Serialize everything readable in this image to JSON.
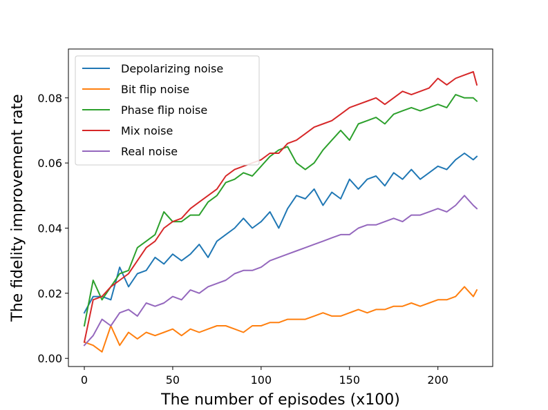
{
  "chart_data": {
    "type": "line",
    "title": "",
    "xlabel": "The number of episodes (x100)",
    "ylabel": "The fidelity improvement rate",
    "xlim": [
      -9,
      231
    ],
    "ylim": [
      -0.0025,
      0.095
    ],
    "xticks": [
      0,
      50,
      100,
      150,
      200
    ],
    "xtick_labels": [
      "0",
      "50",
      "100",
      "150",
      "200"
    ],
    "yticks": [
      0.0,
      0.02,
      0.04,
      0.06,
      0.08
    ],
    "ytick_labels": [
      "0.00",
      "0.02",
      "0.04",
      "0.06",
      "0.08"
    ],
    "grid": false,
    "legend_position": "upper-left",
    "series": [
      {
        "name": "Depolarizing noise",
        "color": "#1f77b4",
        "x": [
          0,
          5,
          10,
          15,
          20,
          25,
          30,
          35,
          40,
          45,
          50,
          55,
          60,
          65,
          70,
          75,
          80,
          85,
          90,
          95,
          100,
          105,
          110,
          115,
          120,
          125,
          130,
          135,
          140,
          145,
          150,
          155,
          160,
          165,
          170,
          175,
          180,
          185,
          190,
          195,
          200,
          205,
          210,
          215,
          220,
          222
        ],
        "values": [
          0.014,
          0.019,
          0.019,
          0.018,
          0.028,
          0.022,
          0.026,
          0.027,
          0.031,
          0.029,
          0.032,
          0.03,
          0.032,
          0.035,
          0.031,
          0.036,
          0.038,
          0.04,
          0.043,
          0.04,
          0.042,
          0.045,
          0.04,
          0.046,
          0.05,
          0.049,
          0.052,
          0.047,
          0.051,
          0.049,
          0.055,
          0.052,
          0.055,
          0.056,
          0.053,
          0.057,
          0.055,
          0.058,
          0.055,
          0.057,
          0.059,
          0.058,
          0.061,
          0.063,
          0.061,
          0.062
        ]
      },
      {
        "name": "Bit flip noise",
        "color": "#ff7f0e",
        "x": [
          0,
          5,
          10,
          15,
          20,
          25,
          30,
          35,
          40,
          45,
          50,
          55,
          60,
          65,
          70,
          75,
          80,
          85,
          90,
          95,
          100,
          105,
          110,
          115,
          120,
          125,
          130,
          135,
          140,
          145,
          150,
          155,
          160,
          165,
          170,
          175,
          180,
          185,
          190,
          195,
          200,
          205,
          210,
          215,
          220,
          222
        ],
        "values": [
          0.005,
          0.004,
          0.002,
          0.01,
          0.004,
          0.008,
          0.006,
          0.008,
          0.007,
          0.008,
          0.009,
          0.007,
          0.009,
          0.008,
          0.009,
          0.01,
          0.01,
          0.009,
          0.008,
          0.01,
          0.01,
          0.011,
          0.011,
          0.012,
          0.012,
          0.012,
          0.013,
          0.014,
          0.013,
          0.013,
          0.014,
          0.015,
          0.014,
          0.015,
          0.015,
          0.016,
          0.016,
          0.017,
          0.016,
          0.017,
          0.018,
          0.018,
          0.019,
          0.022,
          0.019,
          0.021
        ]
      },
      {
        "name": "Phase flip noise",
        "color": "#2ca02c",
        "x": [
          0,
          5,
          10,
          15,
          20,
          25,
          30,
          35,
          40,
          45,
          50,
          55,
          60,
          65,
          70,
          75,
          80,
          85,
          90,
          95,
          100,
          105,
          110,
          115,
          120,
          125,
          130,
          135,
          140,
          145,
          150,
          155,
          160,
          165,
          170,
          175,
          180,
          185,
          190,
          195,
          200,
          205,
          210,
          215,
          220,
          222
        ],
        "values": [
          0.01,
          0.024,
          0.018,
          0.022,
          0.026,
          0.027,
          0.034,
          0.036,
          0.038,
          0.045,
          0.042,
          0.042,
          0.044,
          0.044,
          0.048,
          0.05,
          0.054,
          0.055,
          0.057,
          0.056,
          0.059,
          0.062,
          0.064,
          0.065,
          0.06,
          0.058,
          0.06,
          0.064,
          0.067,
          0.07,
          0.067,
          0.072,
          0.073,
          0.074,
          0.072,
          0.075,
          0.076,
          0.077,
          0.076,
          0.077,
          0.078,
          0.077,
          0.081,
          0.08,
          0.08,
          0.079
        ]
      },
      {
        "name": "Mix noise",
        "color": "#d62728",
        "x": [
          0,
          5,
          10,
          15,
          20,
          25,
          30,
          35,
          40,
          45,
          50,
          55,
          60,
          65,
          70,
          75,
          80,
          85,
          90,
          95,
          100,
          105,
          110,
          115,
          120,
          125,
          130,
          135,
          140,
          145,
          150,
          155,
          160,
          165,
          170,
          175,
          180,
          185,
          190,
          195,
          200,
          205,
          210,
          215,
          220,
          222
        ],
        "values": [
          0.005,
          0.018,
          0.019,
          0.022,
          0.024,
          0.026,
          0.03,
          0.034,
          0.036,
          0.04,
          0.042,
          0.043,
          0.046,
          0.048,
          0.05,
          0.052,
          0.056,
          0.058,
          0.059,
          0.06,
          0.061,
          0.063,
          0.063,
          0.066,
          0.067,
          0.069,
          0.071,
          0.072,
          0.073,
          0.075,
          0.077,
          0.078,
          0.079,
          0.08,
          0.078,
          0.08,
          0.082,
          0.081,
          0.082,
          0.083,
          0.086,
          0.084,
          0.086,
          0.087,
          0.088,
          0.084
        ]
      },
      {
        "name": "Real noise",
        "color": "#9467bd",
        "x": [
          0,
          5,
          10,
          15,
          20,
          25,
          30,
          35,
          40,
          45,
          50,
          55,
          60,
          65,
          70,
          75,
          80,
          85,
          90,
          95,
          100,
          105,
          110,
          115,
          120,
          125,
          130,
          135,
          140,
          145,
          150,
          155,
          160,
          165,
          170,
          175,
          180,
          185,
          190,
          195,
          200,
          205,
          210,
          215,
          220,
          222
        ],
        "values": [
          0.004,
          0.007,
          0.012,
          0.01,
          0.014,
          0.015,
          0.013,
          0.017,
          0.016,
          0.017,
          0.019,
          0.018,
          0.021,
          0.02,
          0.022,
          0.023,
          0.024,
          0.026,
          0.027,
          0.027,
          0.028,
          0.03,
          0.031,
          0.032,
          0.033,
          0.034,
          0.035,
          0.036,
          0.037,
          0.038,
          0.038,
          0.04,
          0.041,
          0.041,
          0.042,
          0.043,
          0.042,
          0.044,
          0.044,
          0.045,
          0.046,
          0.045,
          0.047,
          0.05,
          0.047,
          0.046
        ]
      }
    ]
  }
}
